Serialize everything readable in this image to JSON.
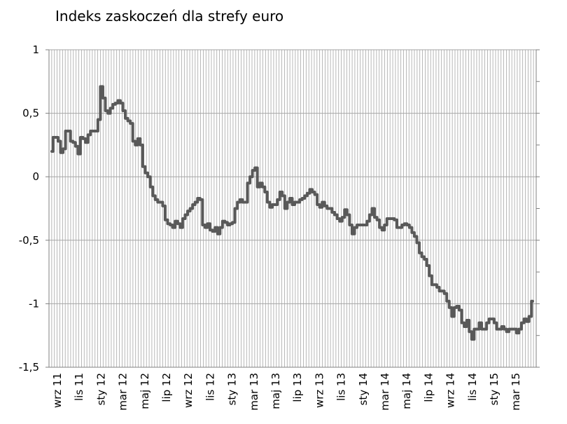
{
  "chart_data": {
    "type": "line",
    "title": "Indeks zaskoczeń dla strefy euro",
    "xlabel": "",
    "ylabel": "",
    "ylim": [
      -1.5,
      1
    ],
    "yticks": [
      "1",
      "0,5",
      "0",
      "-0,5",
      "-1",
      "-1,5"
    ],
    "ytick_values": [
      1,
      0.5,
      0,
      -0.5,
      -1,
      -1.5
    ],
    "x_tick_labels": [
      "wrz 11",
      "lis 11",
      "sty 12",
      "mar 12",
      "maj 12",
      "lip 12",
      "wrz 12",
      "lis 12",
      "sty 13",
      "mar 13",
      "maj 13",
      "lip 13",
      "wrz 13",
      "lis 13",
      "sty 14",
      "mar 14",
      "maj 14",
      "lip 14",
      "wrz 14",
      "lis 14",
      "sty 15",
      "mar 15"
    ],
    "grid": "vertical",
    "colors": {
      "line": "#595959",
      "grid": "#a6a6a6",
      "axis": "#808080"
    },
    "series": [
      {
        "values": [
          0.2,
          0.31,
          0.31,
          0.28,
          0.19,
          0.22,
          0.36,
          0.36,
          0.28,
          0.27,
          0.24,
          0.18,
          0.31,
          0.3,
          0.27,
          0.33,
          0.36,
          0.36,
          0.36,
          0.45,
          0.71,
          0.62,
          0.52,
          0.5,
          0.54,
          0.57,
          0.58,
          0.6,
          0.58,
          0.52,
          0.46,
          0.44,
          0.42,
          0.28,
          0.25,
          0.3,
          0.25,
          0.08,
          0.03,
          0.0,
          -0.08,
          -0.15,
          -0.18,
          -0.2,
          -0.2,
          -0.23,
          -0.34,
          -0.37,
          -0.38,
          -0.4,
          -0.35,
          -0.37,
          -0.4,
          -0.33,
          -0.3,
          -0.27,
          -0.25,
          -0.22,
          -0.2,
          -0.17,
          -0.18,
          -0.38,
          -0.4,
          -0.37,
          -0.42,
          -0.43,
          -0.4,
          -0.45,
          -0.4,
          -0.35,
          -0.36,
          -0.38,
          -0.37,
          -0.36,
          -0.25,
          -0.2,
          -0.18,
          -0.2,
          -0.2,
          -0.05,
          0.0,
          0.05,
          0.07,
          -0.08,
          -0.05,
          -0.08,
          -0.12,
          -0.2,
          -0.24,
          -0.22,
          -0.22,
          -0.18,
          -0.12,
          -0.15,
          -0.25,
          -0.2,
          -0.17,
          -0.22,
          -0.2,
          -0.2,
          -0.18,
          -0.17,
          -0.15,
          -0.13,
          -0.1,
          -0.12,
          -0.14,
          -0.22,
          -0.24,
          -0.2,
          -0.23,
          -0.25,
          -0.25,
          -0.28,
          -0.3,
          -0.33,
          -0.35,
          -0.32,
          -0.26,
          -0.3,
          -0.38,
          -0.45,
          -0.4,
          -0.38,
          -0.38,
          -0.38,
          -0.38,
          -0.35,
          -0.3,
          -0.25,
          -0.32,
          -0.34,
          -0.4,
          -0.42,
          -0.38,
          -0.33,
          -0.33,
          -0.33,
          -0.34,
          -0.4,
          -0.4,
          -0.38,
          -0.37,
          -0.38,
          -0.4,
          -0.44,
          -0.47,
          -0.52,
          -0.6,
          -0.63,
          -0.65,
          -0.7,
          -0.78,
          -0.85,
          -0.85,
          -0.87,
          -0.9,
          -0.9,
          -0.92,
          -0.98,
          -1.03,
          -1.1,
          -1.03,
          -1.02,
          -1.05,
          -1.15,
          -1.18,
          -1.13,
          -1.22,
          -1.28,
          -1.2,
          -1.2,
          -1.15,
          -1.2,
          -1.2,
          -1.15,
          -1.12,
          -1.12,
          -1.15,
          -1.2,
          -1.2,
          -1.18,
          -1.2,
          -1.22,
          -1.2,
          -1.2,
          -1.2,
          -1.23,
          -1.2,
          -1.15,
          -1.12,
          -1.14,
          -1.1,
          -0.98
        ]
      }
    ]
  }
}
